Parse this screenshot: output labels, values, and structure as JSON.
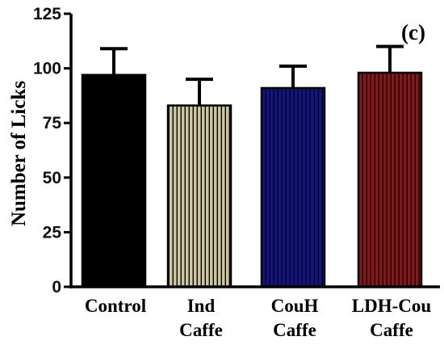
{
  "chart_data": {
    "type": "bar",
    "panel_label": "(c)",
    "ylabel": "Number of Licks",
    "ylim": [
      0,
      125
    ],
    "yticks": [
      0,
      25,
      50,
      75,
      100,
      125
    ],
    "categories": [
      {
        "lines": [
          "Control"
        ],
        "value": 97,
        "error": 12,
        "color": "#000000",
        "pattern": "solid"
      },
      {
        "lines": [
          "Ind",
          "Caffe"
        ],
        "value": 83,
        "error": 12,
        "color": "#CFC69A",
        "pattern": "vertical-stripes"
      },
      {
        "lines": [
          "CouH",
          "Caffe"
        ],
        "value": 91,
        "error": 10,
        "color": "#13138C",
        "pattern": "vertical-stripes"
      },
      {
        "lines": [
          "LDH-Cou",
          "Caffe"
        ],
        "value": 98,
        "error": 12,
        "color": "#8E1416",
        "pattern": "vertical-stripes"
      }
    ],
    "grid": false
  }
}
